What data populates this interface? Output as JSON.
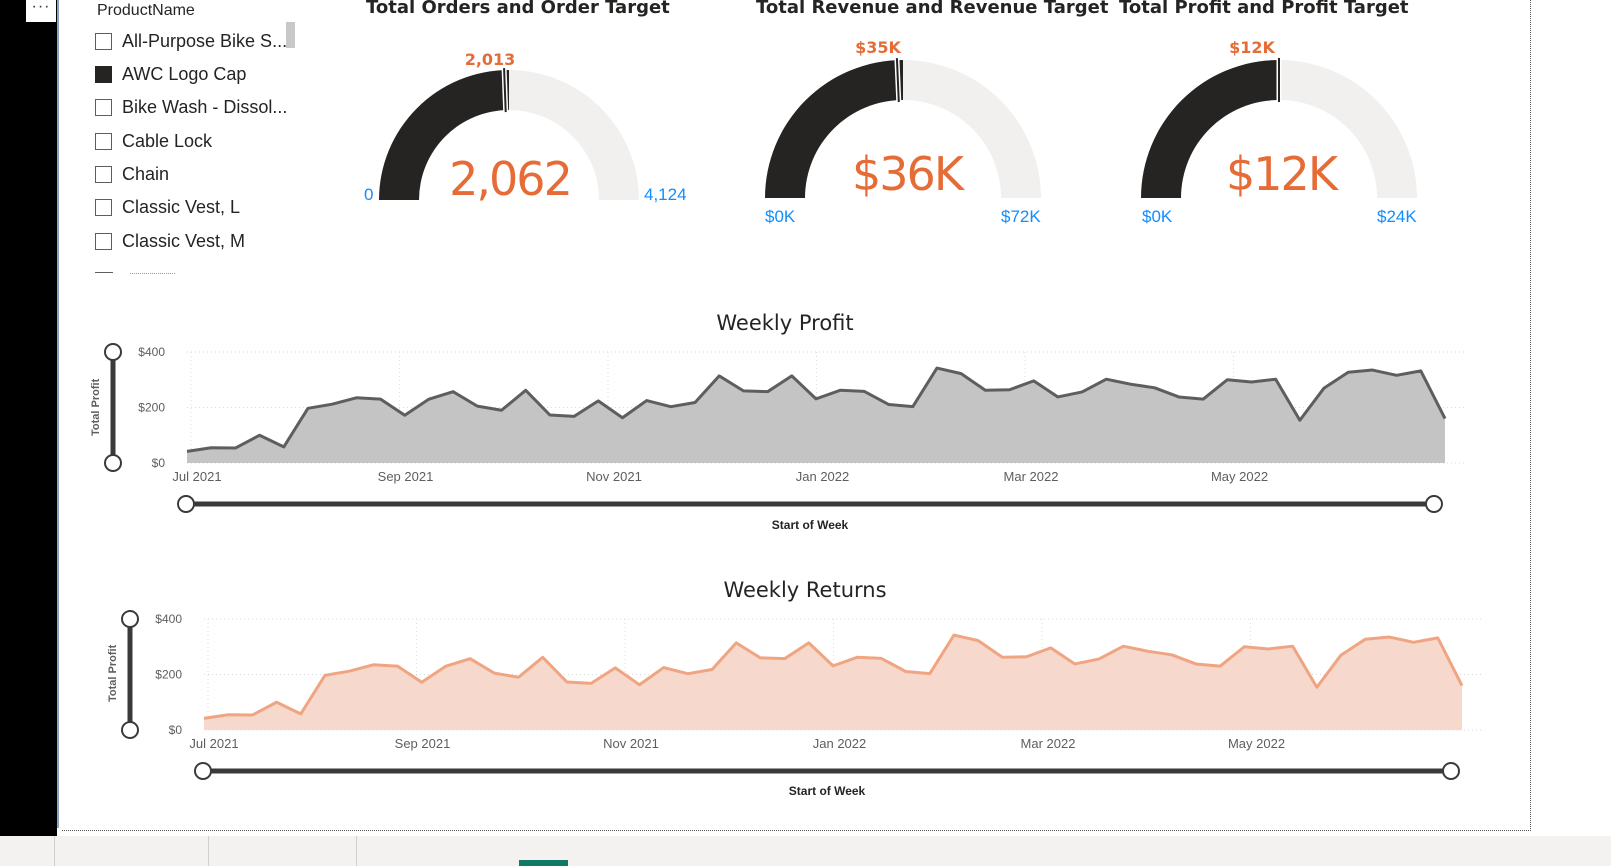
{
  "toolbar": {
    "more_label": "···"
  },
  "slicer": {
    "title": "ProductName",
    "items": [
      {
        "label": "All-Purpose Bike S...",
        "checked": false
      },
      {
        "label": "AWC Logo Cap",
        "checked": true
      },
      {
        "label": "Bike Wash - Dissol...",
        "checked": false
      },
      {
        "label": "Cable Lock",
        "checked": false
      },
      {
        "label": "Chain",
        "checked": false
      },
      {
        "label": "Classic Vest, L",
        "checked": false
      },
      {
        "label": "Classic Vest, M",
        "checked": false
      }
    ]
  },
  "gauges": [
    {
      "title": "Total Orders and Order Target",
      "value": 2062,
      "value_label": "2,062",
      "target": 2013,
      "target_label": "2,013",
      "min": 0,
      "max": 4124,
      "min_label": "0",
      "max_label": "4,124"
    },
    {
      "title": "Total Revenue and Revenue Target",
      "value": 36,
      "value_label": "$36K",
      "target": 35,
      "target_label": "$35K",
      "min": 0,
      "max": 72,
      "min_label": "$0K",
      "max_label": "$72K"
    },
    {
      "title": "Total Profit and Profit Target",
      "value": 12,
      "value_label": "$12K",
      "target": 12,
      "target_label": "$12K",
      "min": 0,
      "max": 24,
      "min_label": "$0K",
      "max_label": "$24K"
    }
  ],
  "colors": {
    "accent": "#e66c37",
    "axis_blue": "#118dff",
    "dark": "#252423",
    "gauge_bg": "#f1f0ef",
    "profit_fill": "#c4c4c4",
    "profit_line": "#605e5c",
    "returns_fill": "#f7d8cc",
    "returns_line": "#f0a582",
    "tab_active": "#117865"
  },
  "chart_data": [
    {
      "type": "area",
      "title": "Weekly Profit",
      "xlabel": "Start of Week",
      "ylabel": "Total Profit",
      "ylim": [
        0,
        400
      ],
      "yticks": [
        "$0",
        "$200",
        "$400"
      ],
      "xticks": [
        "Jul 2021",
        "Sep 2021",
        "Nov 2021",
        "Jan 2022",
        "Mar 2022",
        "May 2022"
      ],
      "grid": true,
      "series": [
        {
          "values": [
            42,
            55,
            54,
            100,
            58,
            197,
            212,
            235,
            230,
            172,
            230,
            257,
            205,
            190,
            262,
            173,
            168,
            224,
            163,
            225,
            203,
            218,
            314,
            260,
            257,
            314,
            231,
            262,
            258,
            211,
            203,
            342,
            322,
            262,
            264,
            296,
            238,
            256,
            302,
            284,
            271,
            238,
            230,
            300,
            292,
            302,
            154,
            270,
            327,
            335,
            316,
            332,
            160
          ]
        }
      ]
    },
    {
      "type": "area",
      "title": "Weekly Returns",
      "xlabel": "Start of Week",
      "ylabel": "Total Profit",
      "ylim": [
        0,
        400
      ],
      "yticks": [
        "$0",
        "$200",
        "$400"
      ],
      "xticks": [
        "Jul 2021",
        "Sep 2021",
        "Nov 2021",
        "Jan 2022",
        "Mar 2022",
        "May 2022"
      ],
      "grid": true,
      "series": [
        {
          "values": [
            42,
            55,
            54,
            100,
            58,
            197,
            212,
            235,
            230,
            172,
            230,
            257,
            205,
            190,
            262,
            173,
            168,
            224,
            163,
            225,
            203,
            218,
            314,
            260,
            257,
            314,
            231,
            262,
            258,
            211,
            203,
            342,
            322,
            262,
            264,
            296,
            238,
            256,
            302,
            284,
            271,
            238,
            230,
            300,
            292,
            302,
            154,
            270,
            327,
            335,
            316,
            332,
            160
          ]
        }
      ]
    }
  ]
}
